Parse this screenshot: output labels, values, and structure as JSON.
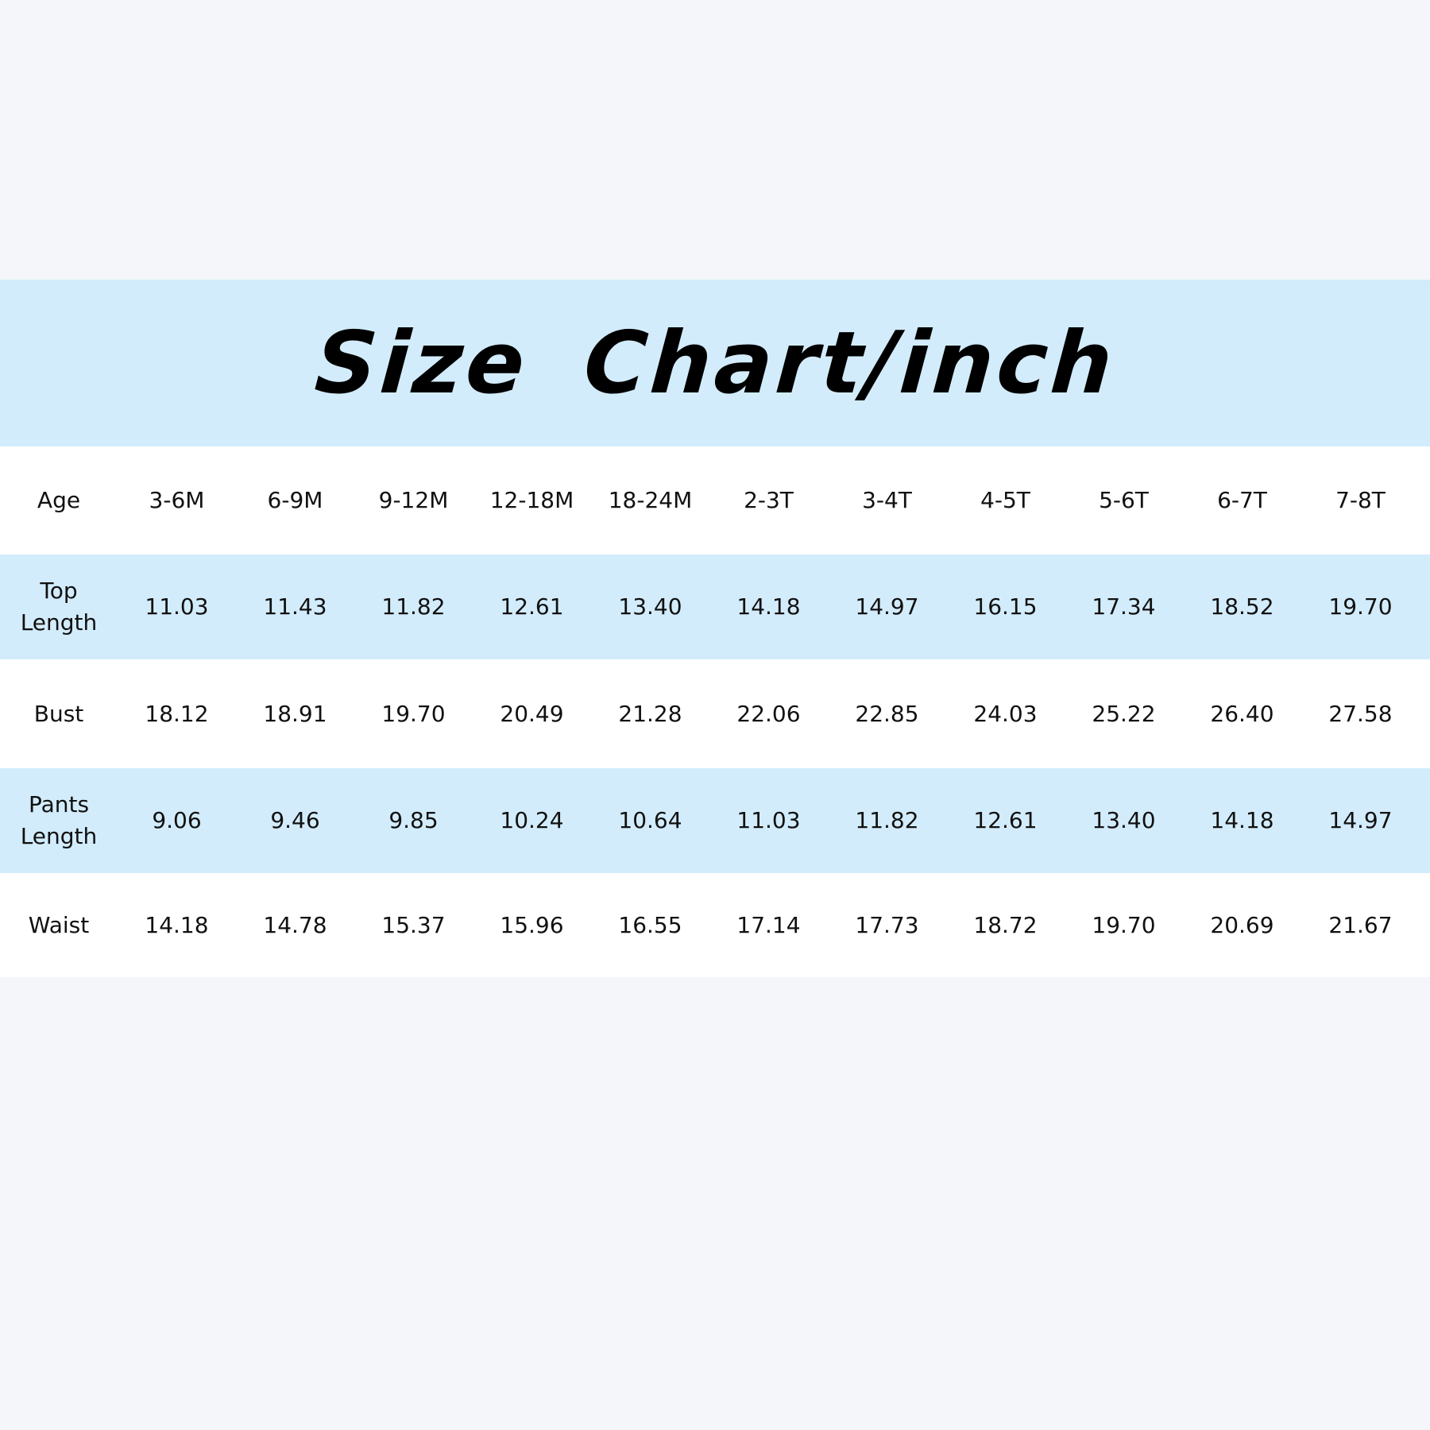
{
  "title": "Size Chart/inch",
  "colors": {
    "background": "#f4f6fa",
    "band": "#d3ecfb",
    "row_white": "#ffffff"
  },
  "table": {
    "header": {
      "label": "Age",
      "values": [
        "3-6M",
        "6-9M",
        "9-12M",
        "12-18M",
        "18-24M",
        "2-3T",
        "3-4T",
        "4-5T",
        "5-6T",
        "6-7T",
        "7-8T"
      ]
    },
    "rows": [
      {
        "label_line1": "Top",
        "label_line2": "Length",
        "values": [
          "11.03",
          "11.43",
          "11.82",
          "12.61",
          "13.40",
          "14.18",
          "14.97",
          "16.15",
          "17.34",
          "18.52",
          "19.70"
        ]
      },
      {
        "label_line1": "Bust",
        "label_line2": "",
        "values": [
          "18.12",
          "18.91",
          "19.70",
          "20.49",
          "21.28",
          "22.06",
          "22.85",
          "24.03",
          "25.22",
          "26.40",
          "27.58"
        ]
      },
      {
        "label_line1": "Pants",
        "label_line2": "Length",
        "values": [
          "9.06",
          "9.46",
          "9.85",
          "10.24",
          "10.64",
          "11.03",
          "11.82",
          "12.61",
          "13.40",
          "14.18",
          "14.97"
        ]
      },
      {
        "label_line1": "Waist",
        "label_line2": "",
        "values": [
          "14.18",
          "14.78",
          "15.37",
          "15.96",
          "16.55",
          "17.14",
          "17.73",
          "18.72",
          "19.70",
          "20.69",
          "21.67"
        ]
      }
    ]
  }
}
